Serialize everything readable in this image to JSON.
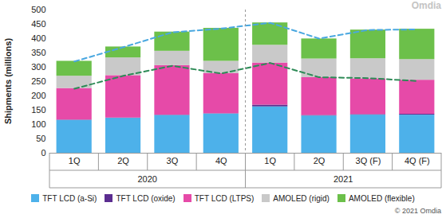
{
  "chart_data": {
    "type": "bar",
    "stacked": true,
    "legend": "bottom",
    "grid": false,
    "y_label": "Shipments (millions)",
    "watermark": "Omdia",
    "source": "© 2021 Omdia",
    "categories": [
      "1Q",
      "2Q",
      "3Q",
      "4Q",
      "1Q",
      "2Q",
      "3Q (F)",
      "4Q (F)"
    ],
    "groups": [
      {
        "name": "2020",
        "count": 4
      },
      {
        "name": "2021",
        "count": 4
      }
    ],
    "ylim": [
      0,
      500
    ],
    "yticks": [
      0,
      50,
      100,
      150,
      200,
      250,
      300,
      350,
      400,
      450,
      500
    ],
    "series": [
      {
        "name": "TFT LCD (a-Si)",
        "color": "#4db1ea",
        "values": [
          115,
          122,
          132,
          137,
          162,
          130,
          133,
          133
        ]
      },
      {
        "name": "TFT LCD (oxide)",
        "color": "#5b2d90",
        "values": [
          1,
          1,
          1,
          1,
          6,
          2,
          2,
          3
        ]
      },
      {
        "name": "TFT LCD (LTPS)",
        "color": "#e64aa8",
        "values": [
          110,
          148,
          173,
          140,
          147,
          132,
          125,
          119
        ]
      },
      {
        "name": "AMOLED (rigid)",
        "color": "#c9c9c9",
        "values": [
          43,
          62,
          50,
          43,
          62,
          65,
          70,
          72
        ]
      },
      {
        "name": "AMOLED (flexible)",
        "color": "#6cc04a",
        "values": [
          52,
          38,
          67,
          115,
          78,
          70,
          100,
          106
        ]
      }
    ],
    "lines": [
      {
        "type": "line",
        "line_style": "dashed",
        "color": "#4aa8e0",
        "values": [
          320,
          370,
          422,
          435,
          455,
          400,
          430,
          432
        ]
      },
      {
        "type": "line",
        "line_style": "dashed",
        "color": "#2e8b57",
        "values": [
          225,
          270,
          305,
          278,
          315,
          265,
          262,
          252
        ]
      }
    ]
  }
}
